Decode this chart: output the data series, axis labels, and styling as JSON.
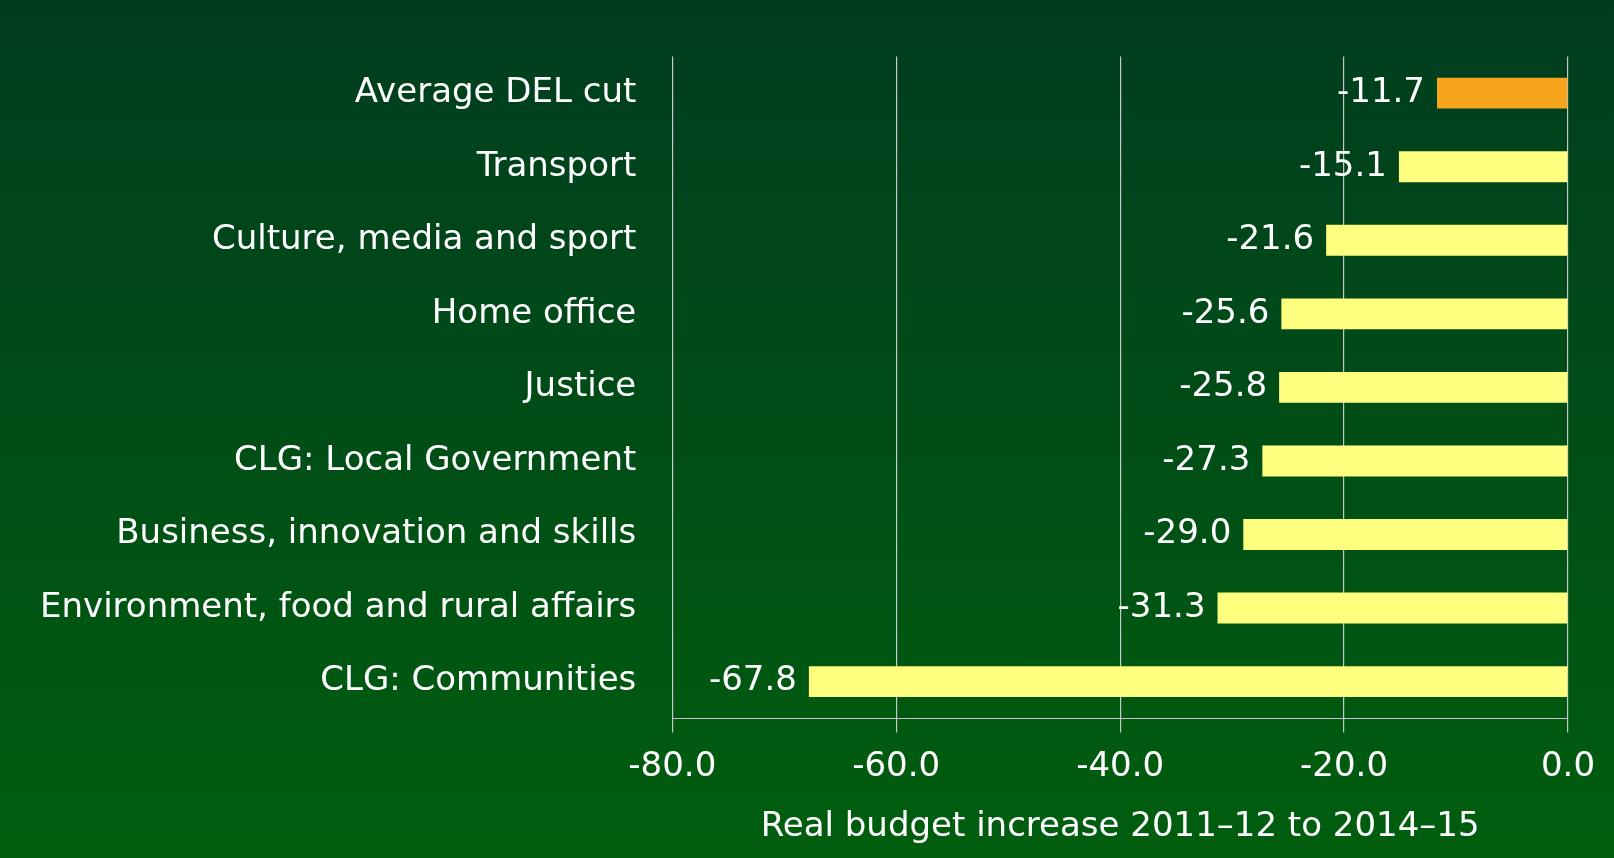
{
  "chart_data": {
    "type": "bar",
    "orientation": "horizontal",
    "categories": [
      "Average DEL cut",
      "Transport",
      "Culture, media and sport",
      "Home office",
      "Justice",
      "CLG: Local Government",
      "Business, innovation and skills",
      "Environment, food and rural affairs",
      "CLG: Communities"
    ],
    "values": [
      -11.7,
      -15.1,
      -21.6,
      -25.6,
      -25.8,
      -27.3,
      -29.0,
      -31.3,
      -67.8
    ],
    "value_labels": [
      "-11.7",
      "-15.1",
      "-21.6",
      "-25.6",
      "-25.8",
      "-27.3",
      "-29.0",
      "-31.3",
      "-67.8"
    ],
    "colors": [
      "#f7a51c",
      "#ffff7f",
      "#ffff7f",
      "#ffff7f",
      "#ffff7f",
      "#ffff7f",
      "#ffff7f",
      "#ffff7f",
      "#ffff7f"
    ],
    "xlim": [
      -80,
      0
    ],
    "xticks": [
      {
        "value": -80,
        "label": "-80.0"
      },
      {
        "value": -60,
        "label": "-60.0"
      },
      {
        "value": -40,
        "label": "-40.0"
      },
      {
        "value": -20,
        "label": "-20.0"
      },
      {
        "value": 0,
        "label": "0.0"
      }
    ],
    "xlabel": "Real budget increase 2011–12 to 2014–15",
    "grid": "x",
    "legend": false
  }
}
